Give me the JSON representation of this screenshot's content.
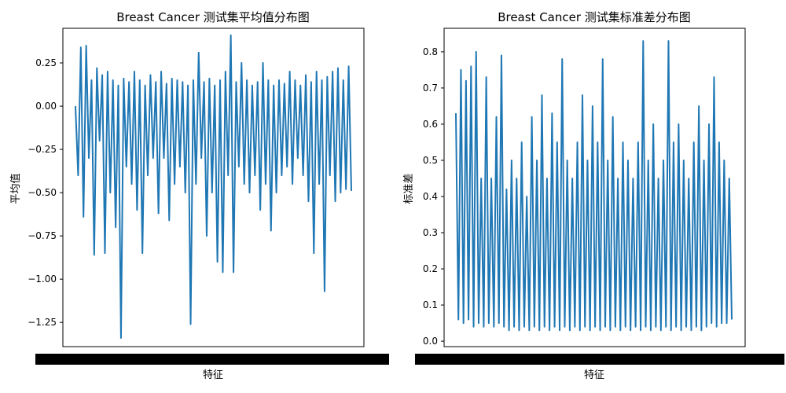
{
  "chart_data": [
    {
      "type": "line",
      "title": "Breast Cancer 测试集平均值分布图",
      "xlabel": "特征",
      "ylabel": "平均值",
      "ylim": [
        -1.39,
        0.45
      ],
      "yticks": [
        0.25,
        0.0,
        -0.25,
        -0.5,
        -0.75,
        -1.0,
        -1.25
      ],
      "ytick_labels": [
        "0.25",
        "0.00",
        "−0.25",
        "−0.50",
        "−0.75",
        "−1.00",
        "−1.25"
      ],
      "grid": false,
      "color": "#1f77b4",
      "series": [
        {
          "values": [
            0.0,
            -0.4,
            0.34,
            -0.64,
            0.35,
            -0.3,
            0.15,
            -0.86,
            0.22,
            -0.2,
            0.18,
            -0.85,
            0.2,
            -0.5,
            0.15,
            -0.7,
            0.12,
            -1.34,
            0.16,
            -0.35,
            0.14,
            -0.45,
            0.2,
            -0.6,
            0.15,
            -0.85,
            0.12,
            -0.4,
            0.18,
            -0.3,
            0.14,
            -0.62,
            0.2,
            -0.3,
            0.13,
            -0.66,
            0.16,
            -0.45,
            0.15,
            -0.35,
            0.14,
            -0.5,
            0.12,
            -1.26,
            0.15,
            -0.45,
            0.31,
            -0.3,
            0.14,
            -0.75,
            0.16,
            -0.5,
            0.12,
            -0.9,
            0.15,
            -0.96,
            0.2,
            -0.4,
            0.41,
            -0.96,
            0.14,
            -0.35,
            0.25,
            -0.45,
            0.15,
            -0.5,
            0.12,
            -0.4,
            0.14,
            -0.6,
            0.25,
            -0.45,
            0.15,
            -0.72,
            0.12,
            -0.5,
            0.15,
            -0.4,
            0.13,
            -0.35,
            0.2,
            -0.45,
            0.15,
            -0.3,
            0.12,
            -0.4,
            0.18,
            -0.55,
            0.14,
            -0.85,
            0.2,
            -0.45,
            0.15,
            -1.07,
            0.17,
            -0.4,
            0.2,
            -0.55,
            0.22,
            -0.5,
            0.15,
            -0.48,
            0.23,
            -0.49
          ]
        }
      ]
    },
    {
      "type": "line",
      "title": "Breast Cancer 测试集标准差分布图",
      "xlabel": "特征",
      "ylabel": "标准差",
      "ylim": [
        -0.015,
        0.865
      ],
      "yticks": [
        0.0,
        0.1,
        0.2,
        0.3,
        0.4,
        0.5,
        0.6,
        0.7,
        0.8
      ],
      "ytick_labels": [
        "0.0",
        "0.1",
        "0.2",
        "0.3",
        "0.4",
        "0.5",
        "0.6",
        "0.7",
        "0.8"
      ],
      "grid": false,
      "color": "#1f77b4",
      "series": [
        {
          "values": [
            0.63,
            0.06,
            0.75,
            0.05,
            0.72,
            0.06,
            0.76,
            0.04,
            0.8,
            0.05,
            0.45,
            0.04,
            0.73,
            0.05,
            0.45,
            0.04,
            0.62,
            0.05,
            0.79,
            0.04,
            0.42,
            0.03,
            0.5,
            0.04,
            0.45,
            0.03,
            0.55,
            0.04,
            0.4,
            0.03,
            0.62,
            0.04,
            0.5,
            0.03,
            0.68,
            0.04,
            0.45,
            0.03,
            0.63,
            0.04,
            0.55,
            0.03,
            0.78,
            0.04,
            0.5,
            0.03,
            0.45,
            0.04,
            0.55,
            0.03,
            0.68,
            0.04,
            0.5,
            0.03,
            0.65,
            0.04,
            0.55,
            0.03,
            0.78,
            0.04,
            0.5,
            0.03,
            0.62,
            0.04,
            0.45,
            0.03,
            0.55,
            0.04,
            0.5,
            0.03,
            0.45,
            0.04,
            0.55,
            0.03,
            0.83,
            0.04,
            0.5,
            0.03,
            0.6,
            0.04,
            0.45,
            0.03,
            0.5,
            0.04,
            0.83,
            0.03,
            0.55,
            0.04,
            0.6,
            0.03,
            0.5,
            0.04,
            0.45,
            0.03,
            0.55,
            0.04,
            0.65,
            0.03,
            0.5,
            0.04,
            0.6,
            0.05,
            0.73,
            0.04,
            0.55,
            0.05,
            0.5,
            0.05,
            0.45,
            0.06
          ]
        }
      ]
    }
  ]
}
